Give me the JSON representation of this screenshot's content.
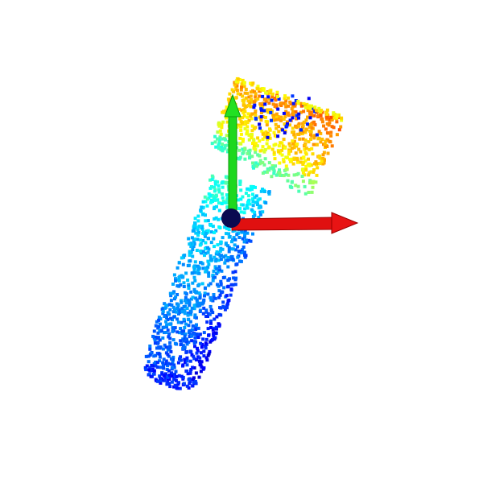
{
  "scene": {
    "background": "#ffffff",
    "colormap": "jet",
    "colormap_stops": [
      "#0000ff",
      "#00aaff",
      "#00ffff",
      "#aaff55",
      "#ffff00"
    ],
    "axes": {
      "x_axis_color": "#ff0000",
      "y_axis_color": "#00dd00",
      "origin_color": "#0a0a50"
    },
    "icon": "point-cloud-3d"
  }
}
